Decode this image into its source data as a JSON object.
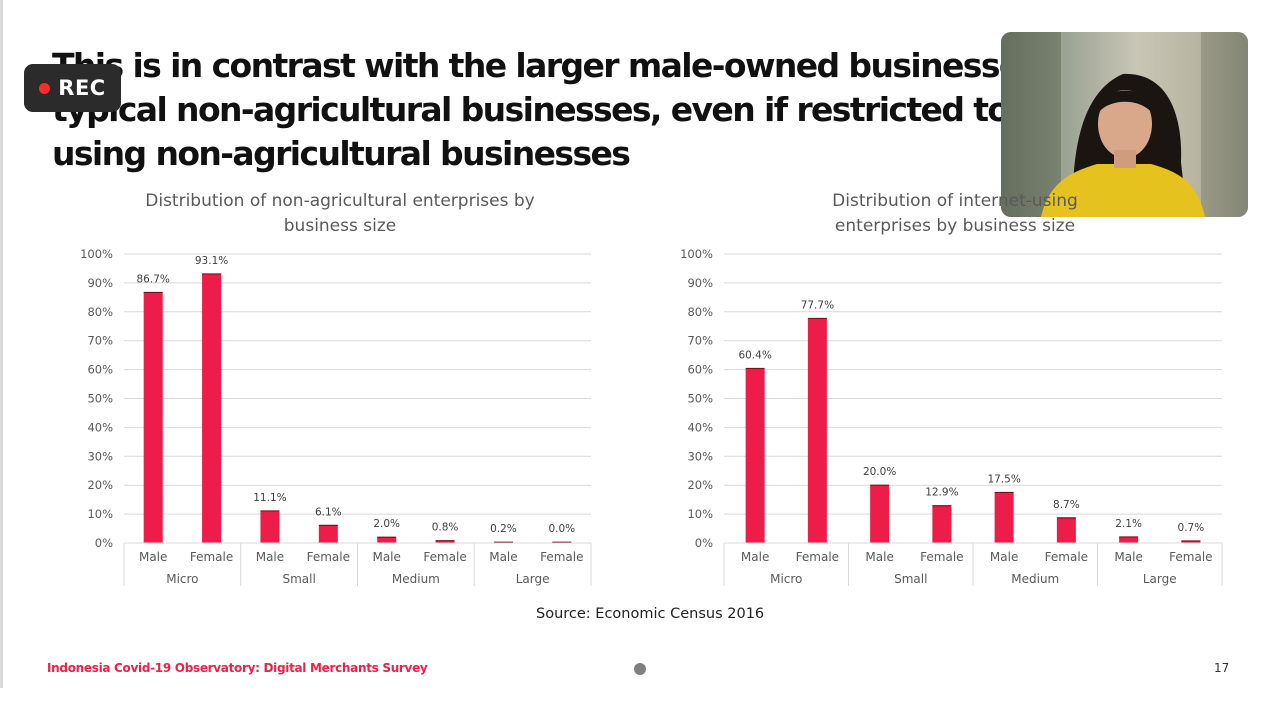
{
  "headline": {
    "line1": "This is in contrast with the larger male-owned businesses",
    "line2": "typical non-agricultural businesses, even if restricted to th",
    "line3": "using non-agricultural businesses"
  },
  "recording": {
    "label": "REC",
    "dot_color": "#ff2a2a"
  },
  "source": "Source: Economic Census 2016",
  "footer": {
    "title": "Indonesia Covid-19 Observatory: Digital Merchants Survey",
    "page": "17"
  },
  "chart_data": [
    {
      "type": "bar",
      "title_lines": [
        "Distribution of non-agricultural enterprises by",
        "business size"
      ],
      "groups": [
        "Micro",
        "Small",
        "Medium",
        "Large"
      ],
      "categories": [
        "Male",
        "Female",
        "Male",
        "Female",
        "Male",
        "Female",
        "Male",
        "Female"
      ],
      "values": [
        86.7,
        93.1,
        11.1,
        6.1,
        2.0,
        0.8,
        0.2,
        0.0
      ],
      "value_labels": [
        "86.7%",
        "93.1%",
        "11.1%",
        "6.1%",
        "2.0%",
        "0.8%",
        "0.2%",
        "0.0%"
      ],
      "yticks": [
        "0%",
        "10%",
        "20%",
        "30%",
        "40%",
        "50%",
        "60%",
        "70%",
        "80%",
        "90%",
        "100%"
      ],
      "ylim": [
        0,
        100
      ],
      "color": "#ee1c48",
      "grid": true
    },
    {
      "type": "bar",
      "title_lines": [
        "Distribution of internet-using",
        "enterprises by business size"
      ],
      "groups": [
        "Micro",
        "Small",
        "Medium",
        "Large"
      ],
      "categories": [
        "Male",
        "Female",
        "Male",
        "Female",
        "Male",
        "Female",
        "Male",
        "Female"
      ],
      "values": [
        60.4,
        77.7,
        20.0,
        12.9,
        17.5,
        8.7,
        2.1,
        0.7
      ],
      "value_labels": [
        "60.4%",
        "77.7%",
        "20.0%",
        "12.9%",
        "17.5%",
        "8.7%",
        "2.1%",
        "0.7%"
      ],
      "yticks": [
        "0%",
        "10%",
        "20%",
        "30%",
        "40%",
        "50%",
        "60%",
        "70%",
        "80%",
        "90%",
        "100%"
      ],
      "ylim": [
        0,
        100
      ],
      "color": "#ee1c48",
      "grid": true
    }
  ]
}
